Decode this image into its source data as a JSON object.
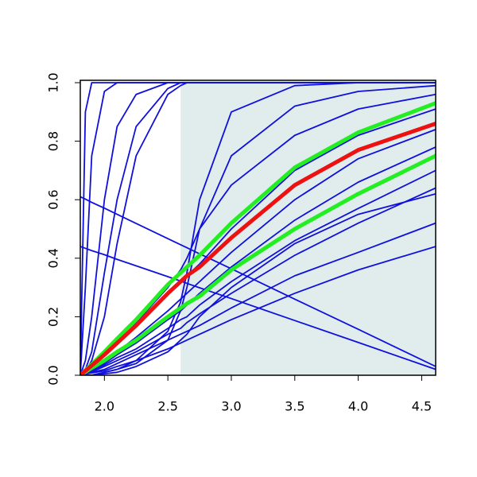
{
  "chart_data": {
    "type": "line",
    "x": [
      1.81,
      1.85,
      1.9,
      2.0,
      2.1,
      2.25,
      2.5,
      2.6,
      2.65,
      2.75,
      3.0,
      3.5,
      4.0,
      4.61
    ],
    "xlim": [
      1.81,
      4.61
    ],
    "ylim": [
      0,
      1
    ],
    "xticks": [
      {
        "value": 2,
        "label": "2.0"
      },
      2.5,
      {
        "value": 3,
        "label": "3.0"
      },
      3.5,
      {
        "value": 4,
        "label": "4.0"
      },
      4.5
    ],
    "yticks": [
      {
        "value": 0,
        "label": "0.0"
      },
      0.2,
      0.4,
      0.6,
      0.8,
      {
        "value": 1,
        "label": "1.0"
      }
    ],
    "shaded_region": {
      "from": 2.6,
      "color": "#e1eded"
    },
    "series": [
      {
        "color": "#1010dd",
        "values": [
          0,
          0.9,
          1,
          1,
          1,
          1,
          1,
          1,
          1,
          1,
          1,
          1,
          1,
          1
        ]
      },
      {
        "color": "#1010dd",
        "values": [
          0,
          0.3,
          0.75,
          0.97,
          1,
          1,
          1,
          1,
          1,
          1,
          1,
          1,
          1,
          1
        ]
      },
      {
        "color": "#1010dd",
        "values": [
          0,
          0.05,
          0.2,
          0.6,
          0.85,
          0.96,
          1,
          1,
          1,
          1,
          1,
          1,
          1,
          1
        ]
      },
      {
        "color": "#1010dd",
        "values": [
          0,
          0.02,
          0.08,
          0.35,
          0.6,
          0.85,
          0.98,
          1,
          1,
          1,
          1,
          1,
          1,
          1
        ]
      },
      {
        "color": "#1010dd",
        "values": [
          0,
          0.01,
          0.05,
          0.2,
          0.45,
          0.75,
          0.96,
          0.99,
          1,
          1,
          1,
          1,
          1,
          1
        ]
      },
      {
        "color": "#1010dd",
        "values": [
          0.61,
          0.602,
          0.591,
          0.571,
          0.55,
          0.519,
          0.467,
          0.446,
          0.436,
          0.415,
          0.364,
          0.26,
          0.157,
          0.03
        ]
      },
      {
        "color": "#1010dd",
        "values": [
          0.44,
          0.434,
          0.426,
          0.412,
          0.396,
          0.374,
          0.337,
          0.322,
          0.314,
          0.299,
          0.262,
          0.187,
          0.112,
          0.02
        ]
      },
      {
        "color": "#1010dd",
        "values": [
          0,
          0,
          0,
          0.01,
          0.02,
          0.05,
          0.15,
          0.25,
          0.35,
          0.6,
          0.9,
          0.99,
          1,
          1
        ]
      },
      {
        "color": "#1010dd",
        "values": [
          0,
          0,
          0,
          0.01,
          0.02,
          0.04,
          0.12,
          0.22,
          0.3,
          0.5,
          0.75,
          0.92,
          0.97,
          0.99
        ]
      },
      {
        "color": "#1010dd",
        "values": [
          0,
          0.02,
          0.04,
          0.08,
          0.12,
          0.18,
          0.3,
          0.36,
          0.4,
          0.5,
          0.65,
          0.82,
          0.91,
          0.96
        ]
      },
      {
        "color": "#1010dd",
        "values": [
          0,
          0.015,
          0.03,
          0.07,
          0.11,
          0.17,
          0.28,
          0.32,
          0.34,
          0.38,
          0.5,
          0.7,
          0.82,
          0.91
        ]
      },
      {
        "color": "#1010dd",
        "values": [
          0,
          0.012,
          0.025,
          0.05,
          0.08,
          0.13,
          0.22,
          0.26,
          0.28,
          0.32,
          0.42,
          0.6,
          0.74,
          0.84
        ]
      },
      {
        "color": "#1010dd",
        "values": [
          0,
          0.01,
          0.02,
          0.04,
          0.07,
          0.11,
          0.19,
          0.22,
          0.24,
          0.28,
          0.37,
          0.53,
          0.66,
          0.78
        ]
      },
      {
        "color": "#1010dd",
        "values": [
          0,
          0.008,
          0.016,
          0.035,
          0.06,
          0.09,
          0.16,
          0.19,
          0.2,
          0.24,
          0.32,
          0.46,
          0.57,
          0.7
        ]
      },
      {
        "color": "#1010dd",
        "values": [
          0,
          0.006,
          0.012,
          0.03,
          0.05,
          0.08,
          0.14,
          0.16,
          0.18,
          0.21,
          0.28,
          0.41,
          0.52,
          0.64
        ]
      },
      {
        "color": "#1010dd",
        "values": [
          0,
          0,
          0,
          0.005,
          0.01,
          0.03,
          0.08,
          0.12,
          0.14,
          0.2,
          0.3,
          0.45,
          0.55,
          0.62
        ]
      },
      {
        "color": "#1010dd",
        "values": [
          0,
          0.005,
          0.01,
          0.02,
          0.04,
          0.07,
          0.12,
          0.14,
          0.15,
          0.17,
          0.23,
          0.34,
          0.42,
          0.52
        ]
      },
      {
        "color": "#1010dd",
        "values": [
          0,
          0.004,
          0.008,
          0.015,
          0.03,
          0.05,
          0.09,
          0.11,
          0.12,
          0.14,
          0.19,
          0.28,
          0.36,
          0.44
        ]
      },
      {
        "color": "#22ee22",
        "values": [
          0,
          0.017,
          0.037,
          0.08,
          0.125,
          0.19,
          0.31,
          0.35,
          0.37,
          0.41,
          0.52,
          0.71,
          0.83,
          0.93
        ]
      },
      {
        "color": "#22ee22",
        "values": [
          0,
          0.011,
          0.025,
          0.05,
          0.08,
          0.12,
          0.2,
          0.23,
          0.245,
          0.27,
          0.36,
          0.5,
          0.62,
          0.75
        ]
      },
      {
        "color": "#ee1111",
        "values": [
          0,
          0.015,
          0.033,
          0.07,
          0.11,
          0.17,
          0.28,
          0.32,
          0.34,
          0.37,
          0.47,
          0.65,
          0.77,
          0.86
        ]
      }
    ]
  }
}
